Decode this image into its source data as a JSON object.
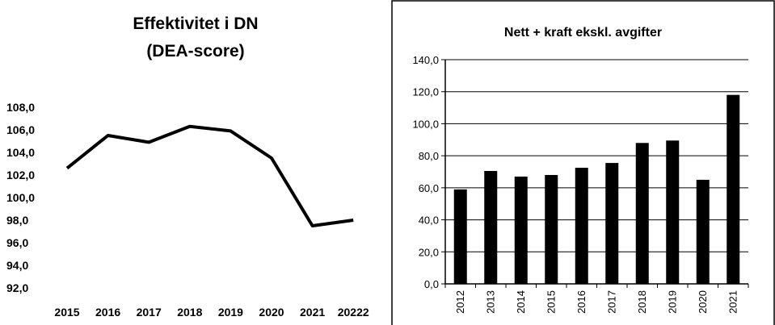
{
  "chart_data": [
    {
      "type": "line",
      "title": [
        "Effektivitet i DN",
        "(DEA-score)"
      ],
      "categories": [
        "2015",
        "2016",
        "2017",
        "2018",
        "2019",
        "2020",
        "2021",
        "20222"
      ],
      "values": [
        102.6,
        105.5,
        104.9,
        106.3,
        105.9,
        103.5,
        97.5,
        98.0
      ],
      "ylim": [
        92,
        108
      ],
      "yticks": [
        "108,0",
        "106,0",
        "104,0",
        "102,0",
        "100,0",
        "98,0",
        "96,0",
        "94,0",
        "92,0"
      ],
      "grid": false
    },
    {
      "type": "bar",
      "title": "Nett + kraft ekskl. avgifter",
      "categories": [
        "2012",
        "2013",
        "2014",
        "2015",
        "2016",
        "2017",
        "2018",
        "2019",
        "2020",
        "2021"
      ],
      "values": [
        59,
        70.5,
        67,
        68,
        72.5,
        75.5,
        88,
        89.5,
        65,
        118
      ],
      "ylim": [
        0,
        140
      ],
      "yticks": [
        "140,0",
        "120,0",
        "100,0",
        "80,0",
        "60,0",
        "40,0",
        "20,0",
        "0,0"
      ],
      "grid": true
    }
  ]
}
